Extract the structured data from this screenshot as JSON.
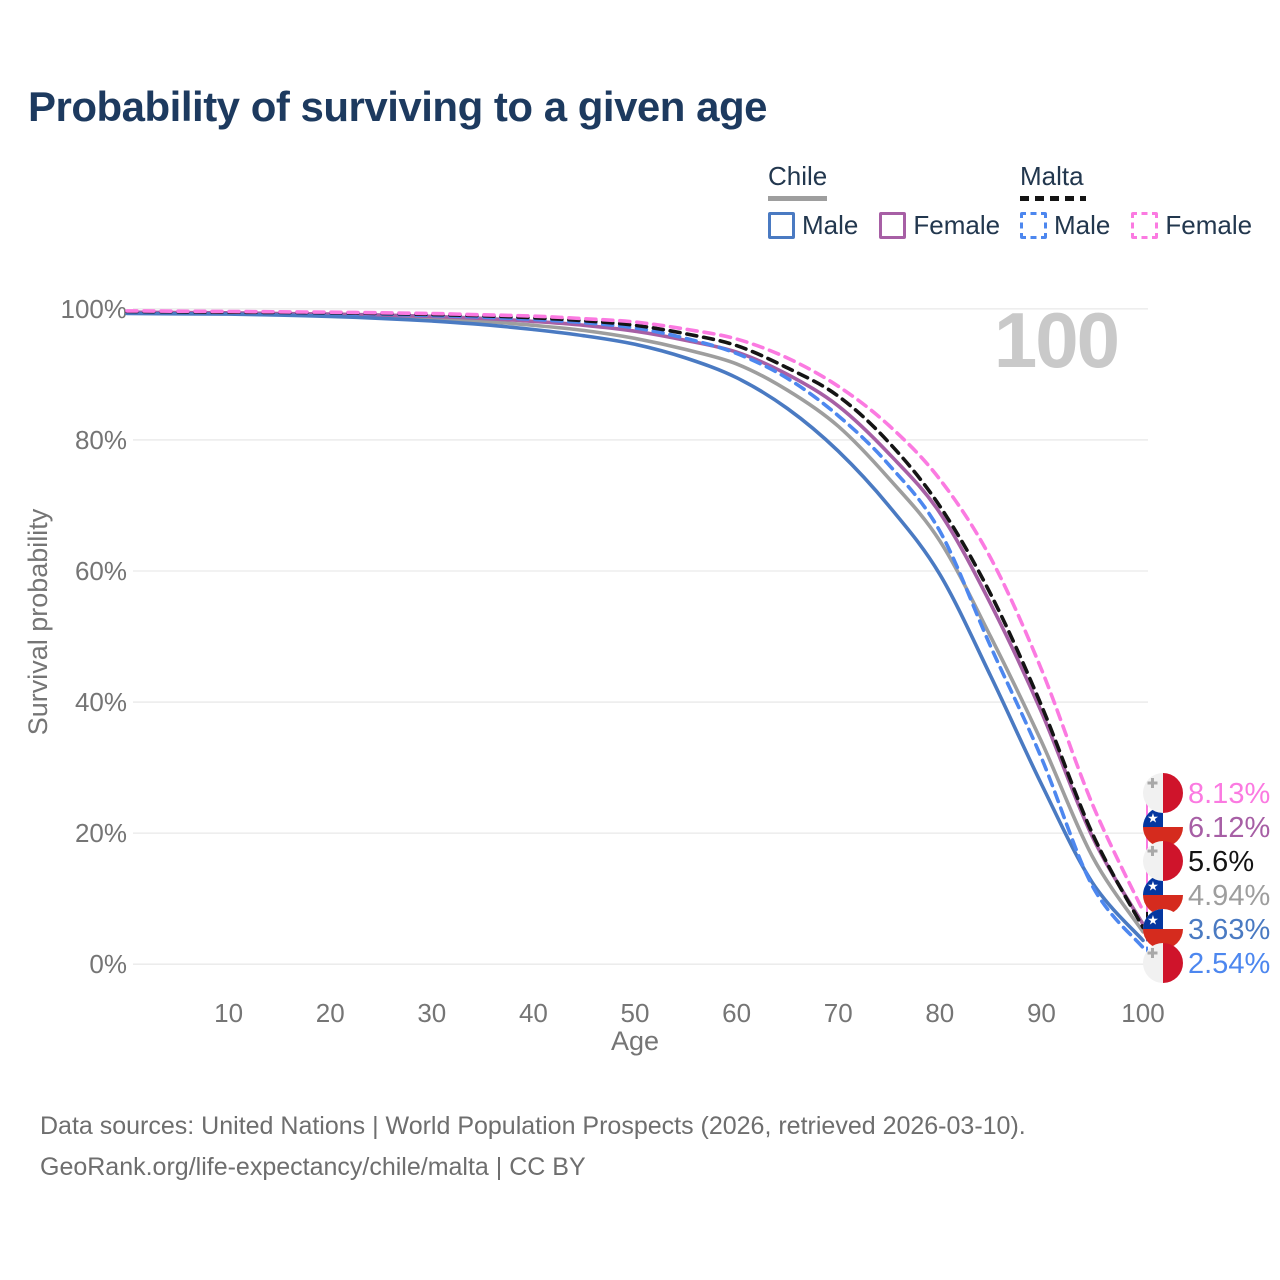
{
  "title": "Probability of surviving to a given age",
  "watermark": "100",
  "legend": {
    "chile": {
      "title": "Chile",
      "male": "Male",
      "female": "Female"
    },
    "malta": {
      "title": "Malta",
      "male": "Male",
      "female": "Female"
    }
  },
  "footer": {
    "line1": "Data sources: United Nations | World Population Prospects (2026, retrieved 2026-03-10).",
    "line2": "GeoRank.org/life-expectancy/chile/malta | CC BY"
  },
  "colors": {
    "chile_male": "#4a7ac2",
    "chile_female": "#a75fa5",
    "chile_total": "#9e9e9e",
    "malta_male": "#4d87ef",
    "malta_female": "#fb7ae1",
    "malta_total": "#141414",
    "title_text": "#1d3a5f",
    "legend_text": "#22374e",
    "axis_text": "#757575",
    "gridline": "#e9e9e9",
    "watermark_text": "#c9c9c9",
    "footer_text": "#6e6e6e",
    "chile_flag_blue": "#0437a0",
    "chile_flag_red": "#d52b1e",
    "malta_flag_red": "#cf142b",
    "malta_flag_white": "#f1f1f1"
  },
  "chart_data": {
    "type": "line",
    "title": "Probability of surviving to a given age",
    "xlabel": "Age",
    "ylabel": "Survival probability",
    "xlim": [
      0,
      100
    ],
    "ylim": [
      0,
      100
    ],
    "x_ticks": [
      10,
      20,
      30,
      40,
      50,
      60,
      70,
      80,
      90,
      100
    ],
    "y_ticks": [
      0,
      20,
      40,
      60,
      80,
      100
    ],
    "grid": "horizontal",
    "legend_position": "top-right",
    "x": [
      0,
      5,
      10,
      15,
      20,
      25,
      30,
      35,
      40,
      45,
      50,
      55,
      60,
      65,
      70,
      75,
      80,
      85,
      90,
      95,
      100
    ],
    "series": [
      {
        "name": "Chile Total",
        "country": "Chile",
        "sex": "Both",
        "style": "solid",
        "color": "#9e9e9e",
        "end_label": "4.94%",
        "values": [
          99.4,
          99.35,
          99.3,
          99.2,
          99.0,
          98.8,
          98.5,
          98.1,
          97.5,
          96.7,
          95.5,
          93.8,
          91.6,
          87.6,
          82.1,
          74.1,
          64.6,
          50.0,
          34.0,
          16.5,
          4.94
        ]
      },
      {
        "name": "Chile Female",
        "country": "Chile",
        "sex": "Female",
        "style": "solid",
        "color": "#a75fa5",
        "end_label": "6.12%",
        "values": [
          99.5,
          99.45,
          99.4,
          99.3,
          99.2,
          99.05,
          98.85,
          98.55,
          98.1,
          97.5,
          96.6,
          95.2,
          93.4,
          90.0,
          85.2,
          77.9,
          68.9,
          55.0,
          38.5,
          19.5,
          6.12
        ]
      },
      {
        "name": "Chile Male",
        "country": "Chile",
        "sex": "Male",
        "style": "solid",
        "color": "#4a7ac2",
        "end_label": "3.63%",
        "values": [
          99.3,
          99.25,
          99.2,
          99.05,
          98.85,
          98.55,
          98.15,
          97.6,
          96.85,
          95.9,
          94.6,
          92.5,
          89.5,
          84.8,
          78.3,
          69.9,
          59.5,
          44.0,
          27.5,
          12.5,
          3.63
        ]
      },
      {
        "name": "Malta Male",
        "country": "Malta",
        "sex": "Male",
        "style": "dashed",
        "color": "#4d87ef",
        "end_label": "2.54%",
        "values": [
          99.6,
          99.55,
          99.5,
          99.4,
          99.3,
          99.2,
          99.0,
          98.75,
          98.4,
          97.9,
          97.1,
          95.5,
          93.2,
          89.4,
          83.7,
          76.2,
          66.1,
          48.5,
          31.5,
          12.0,
          2.54
        ]
      },
      {
        "name": "Malta Total",
        "country": "Malta",
        "sex": "Both",
        "style": "dashed",
        "color": "#141414",
        "end_label": "5.6%",
        "values": [
          99.6,
          99.55,
          99.5,
          99.45,
          99.4,
          99.3,
          99.15,
          98.95,
          98.65,
          98.2,
          97.5,
          96.2,
          94.4,
          91.0,
          86.7,
          79.6,
          69.9,
          56.5,
          39.5,
          20.0,
          5.6
        ]
      },
      {
        "name": "Malta Female",
        "country": "Malta",
        "sex": "Female",
        "style": "dashed",
        "color": "#fb7ae1",
        "end_label": "8.13%",
        "values": [
          99.7,
          99.65,
          99.6,
          99.55,
          99.5,
          99.4,
          99.3,
          99.1,
          98.9,
          98.5,
          98.0,
          96.9,
          95.4,
          92.5,
          88.2,
          82.2,
          74.0,
          62.0,
          45.0,
          24.5,
          8.13
        ]
      }
    ]
  }
}
